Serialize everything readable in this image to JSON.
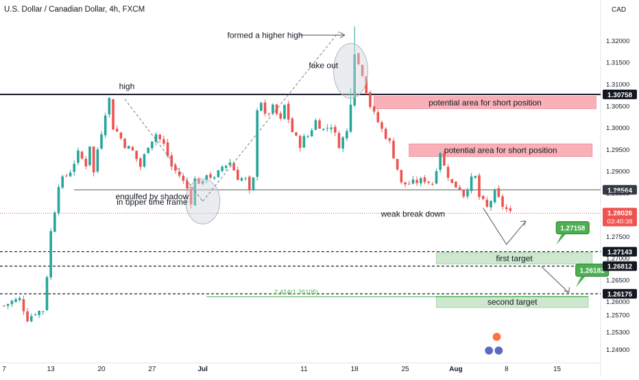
{
  "header": {
    "title": "U.S. Dollar / Canadian Dollar, 4h, FXCM",
    "currency": "CAD"
  },
  "colors": {
    "up": "#26a69a",
    "down": "#ef5350",
    "zone_red": "#f7a3ad",
    "zone_green": "#c8e6c9",
    "badge_green": "#4caf50",
    "axis_text": "#131722",
    "fib": "#4caf50"
  },
  "chart_data": {
    "type": "candlestick",
    "ylim": [
      1.2465,
      1.3255
    ],
    "y_ticks": [
      "1.32000",
      "1.31500",
      "1.31000",
      "1.30500",
      "1.30000",
      "1.29500",
      "1.29000",
      "1.28500",
      "1.27500",
      "1.27000",
      "1.26500",
      "1.26000",
      "1.25700",
      "1.25300",
      "1.24900"
    ],
    "y_tick_values": [
      1.32,
      1.315,
      1.31,
      1.305,
      1.3,
      1.295,
      1.29,
      1.285,
      1.275,
      1.27,
      1.265,
      1.26,
      1.257,
      1.253,
      1.249
    ],
    "x_ticks": [
      "7",
      "13",
      "20",
      "27",
      "Jul",
      "11",
      "18",
      "25",
      "Aug",
      "8",
      "15"
    ],
    "x_tick_index": [
      0,
      12,
      25,
      38,
      51,
      77,
      90,
      103,
      116,
      129,
      142
    ],
    "price_series": [
      [
        0,
        1.259
      ],
      [
        2,
        1.26
      ],
      [
        4,
        1.2605
      ],
      [
        6,
        1.256
      ],
      [
        8,
        1.2575
      ],
      [
        10,
        1.258
      ],
      [
        11,
        1.266
      ],
      [
        12,
        1.276
      ],
      [
        13,
        1.281
      ],
      [
        14,
        1.287
      ],
      [
        15,
        1.288
      ],
      [
        17,
        1.29
      ],
      [
        19,
        1.294
      ],
      [
        21,
        1.2915
      ],
      [
        22,
        1.296
      ],
      [
        23,
        1.2895
      ],
      [
        24,
        1.295
      ],
      [
        25,
        1.299
      ],
      [
        26,
        1.3035
      ],
      [
        27,
        1.3065
      ],
      [
        28,
        1.3
      ],
      [
        29,
        1.299
      ],
      [
        31,
        1.296
      ],
      [
        33,
        1.2945
      ],
      [
        35,
        1.291
      ],
      [
        37,
        1.296
      ],
      [
        39,
        1.2985
      ],
      [
        41,
        1.296
      ],
      [
        43,
        1.291
      ],
      [
        45,
        1.289
      ],
      [
        47,
        1.286
      ],
      [
        48,
        1.283
      ],
      [
        49,
        1.288
      ],
      [
        51,
        1.287
      ],
      [
        52,
        1.2895
      ],
      [
        54,
        1.288
      ],
      [
        56,
        1.291
      ],
      [
        58,
        1.292
      ],
      [
        60,
        1.2885
      ],
      [
        62,
        1.288
      ],
      [
        63,
        1.285
      ],
      [
        64,
        1.288
      ],
      [
        65,
        1.3045
      ],
      [
        66,
        1.306
      ],
      [
        67,
        1.3025
      ],
      [
        69,
        1.3045
      ],
      [
        71,
        1.3015
      ],
      [
        72,
        1.305
      ],
      [
        74,
        1.299
      ],
      [
        76,
        1.296
      ],
      [
        77,
        1.2975
      ],
      [
        78,
        1.298
      ],
      [
        80,
        1.3015
      ],
      [
        82,
        1.2995
      ],
      [
        84,
        1.3005
      ],
      [
        86,
        1.296
      ],
      [
        88,
        1.299
      ],
      [
        89,
        1.306
      ],
      [
        90,
        1.3175
      ],
      [
        91,
        1.3145
      ],
      [
        92,
        1.3125
      ],
      [
        93,
        1.3085
      ],
      [
        94,
        1.305
      ],
      [
        95,
        1.303
      ],
      [
        97,
        1.2995
      ],
      [
        99,
        1.2965
      ],
      [
        100,
        1.2935
      ],
      [
        101,
        1.2905
      ],
      [
        102,
        1.287
      ],
      [
        104,
        1.287
      ],
      [
        106,
        1.2875
      ],
      [
        108,
        1.288
      ],
      [
        110,
        1.287
      ],
      [
        112,
        1.2945
      ],
      [
        113,
        1.291
      ],
      [
        115,
        1.287
      ],
      [
        117,
        1.286
      ],
      [
        118,
        1.2845
      ],
      [
        120,
        1.288
      ],
      [
        121,
        1.2885
      ],
      [
        122,
        1.284
      ],
      [
        124,
        1.2815
      ],
      [
        126,
        1.285
      ],
      [
        128,
        1.282
      ],
      [
        130,
        1.2803
      ]
    ],
    "levels": [
      {
        "label": "1.30758",
        "value": 1.30758,
        "style": "solid-thick"
      },
      {
        "label": "1.28564",
        "value": 1.28564,
        "style": "solid"
      },
      {
        "label": "1.27143",
        "value": 1.27143,
        "style": "dashed"
      },
      {
        "label": "1.26812",
        "value": 1.26812,
        "style": "dashed"
      },
      {
        "label": "1.26175",
        "value": 1.26175,
        "style": "dashed"
      }
    ],
    "current_price": {
      "label": "1.28026",
      "value": 1.28026,
      "timer": "03:40:38"
    },
    "fib_level": {
      "label": "2.414(1.26105)",
      "value": 1.26105
    },
    "zones": [
      {
        "label": "potential area for short position",
        "kind": "short",
        "from_index": 95,
        "to_index": 152,
        "top": 1.3071,
        "bottom": 1.3043
      },
      {
        "label": "potential area for short position",
        "kind": "short",
        "from_index": 104,
        "to_index": 151,
        "top": 1.2962,
        "bottom": 1.2933
      },
      {
        "label": "first target",
        "kind": "target",
        "from_index": 111,
        "to_index": 151,
        "top": 1.2712,
        "bottom": 1.2686
      },
      {
        "label": "second target",
        "kind": "target",
        "from_index": 111,
        "to_index": 150,
        "top": 1.2612,
        "bottom": 1.2586
      }
    ],
    "target_badges": [
      {
        "label": "1.27158",
        "value": 1.27158,
        "index": 146
      },
      {
        "label": "1.26182",
        "value": 1.26182,
        "index": 151
      }
    ],
    "projection_path": [
      [
        123,
        1.2815
      ],
      [
        129,
        1.2731
      ],
      [
        134,
        1.2785
      ]
    ],
    "projection_path_2": [
      [
        138,
        1.268
      ],
      [
        145,
        1.262
      ]
    ],
    "annotations": {
      "higher_high": "formed a higher high",
      "fake_out": "fake out",
      "high": "high",
      "engulfed": "engulfed by shadow",
      "engulfed2": "in upper time frame",
      "weak_break": "weak break down"
    }
  }
}
